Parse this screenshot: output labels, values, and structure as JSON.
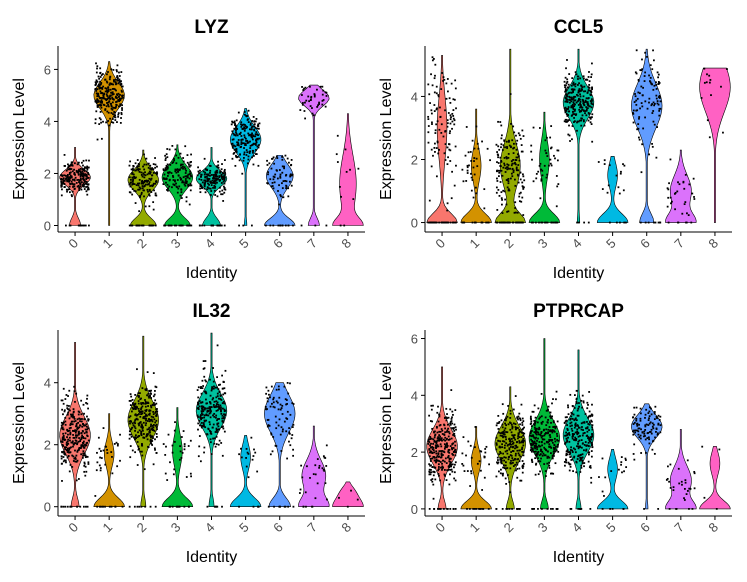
{
  "figure": {
    "identities": [
      "0",
      "1",
      "2",
      "3",
      "4",
      "5",
      "6",
      "7",
      "8"
    ],
    "identity_colors": [
      "#F8766D",
      "#D39200",
      "#93AA00",
      "#00BA38",
      "#00C19F",
      "#00B9E3",
      "#619CFF",
      "#DB72FB",
      "#FF61C3"
    ]
  },
  "chart_data": [
    {
      "type": "violin",
      "title": "LYZ",
      "xlabel": "Identity",
      "ylabel": "Expression Level",
      "ylim": [
        -0.25,
        6.9
      ],
      "yticks": [
        0,
        2,
        4,
        6
      ],
      "categories": [
        "0",
        "1",
        "2",
        "3",
        "4",
        "5",
        "6",
        "7",
        "8"
      ],
      "series": [
        {
          "identity": "0",
          "max": 3.0,
          "zero_frac": 0.2,
          "center": 1.85,
          "spread": 0.3,
          "n_points": 220
        },
        {
          "identity": "1",
          "max": 6.3,
          "zero_frac": 0.0,
          "center": 5.0,
          "spread": 0.5,
          "n_points": 260
        },
        {
          "identity": "2",
          "max": 2.9,
          "zero_frac": 0.4,
          "center": 1.75,
          "spread": 0.4,
          "n_points": 180
        },
        {
          "identity": "3",
          "max": 3.1,
          "zero_frac": 0.4,
          "center": 1.85,
          "spread": 0.45,
          "n_points": 160
        },
        {
          "identity": "4",
          "max": 3.0,
          "zero_frac": 0.3,
          "center": 1.8,
          "spread": 0.3,
          "n_points": 180
        },
        {
          "identity": "5",
          "max": 4.5,
          "zero_frac": 0.05,
          "center": 3.3,
          "spread": 0.5,
          "n_points": 200
        },
        {
          "identity": "6",
          "max": 2.7,
          "zero_frac": 0.5,
          "center": 1.9,
          "spread": 0.45,
          "n_points": 80
        },
        {
          "identity": "7",
          "max": 5.4,
          "zero_frac": 0.2,
          "center": 4.9,
          "spread": 0.3,
          "n_points": 45
        },
        {
          "identity": "8",
          "max": 4.3,
          "zero_frac": 0.6,
          "center": 1.6,
          "spread": 1.1,
          "n_points": 12
        }
      ]
    },
    {
      "type": "violin",
      "title": "CCL5",
      "xlabel": "Identity",
      "ylabel": "Expression Level",
      "ylim": [
        -0.3,
        5.6
      ],
      "yticks": [
        0,
        2,
        4
      ],
      "categories": [
        "0",
        "1",
        "2",
        "3",
        "4",
        "5",
        "6",
        "7",
        "8"
      ],
      "series": [
        {
          "identity": "0",
          "max": 5.3,
          "zero_frac": 0.9,
          "center": 3.0,
          "spread": 1.0,
          "n_points": 150
        },
        {
          "identity": "1",
          "max": 3.6,
          "zero_frac": 0.9,
          "center": 1.8,
          "spread": 0.5,
          "n_points": 50
        },
        {
          "identity": "2",
          "max": 5.5,
          "zero_frac": 0.6,
          "center": 1.8,
          "spread": 0.7,
          "n_points": 200
        },
        {
          "identity": "3",
          "max": 3.5,
          "zero_frac": 0.9,
          "center": 2.0,
          "spread": 0.6,
          "n_points": 60
        },
        {
          "identity": "4",
          "max": 5.5,
          "zero_frac": 0.05,
          "center": 3.8,
          "spread": 0.5,
          "n_points": 260
        },
        {
          "identity": "5",
          "max": 2.1,
          "zero_frac": 0.9,
          "center": 1.5,
          "spread": 0.4,
          "n_points": 20
        },
        {
          "identity": "6",
          "max": 5.5,
          "zero_frac": 0.25,
          "center": 3.7,
          "spread": 0.7,
          "n_points": 110
        },
        {
          "identity": "7",
          "max": 2.3,
          "zero_frac": 0.55,
          "center": 1.0,
          "spread": 0.5,
          "n_points": 35
        },
        {
          "identity": "8",
          "max": 4.9,
          "zero_frac": 0.0,
          "center": 4.3,
          "spread": 0.8,
          "n_points": 14
        }
      ]
    },
    {
      "type": "violin",
      "title": "IL32",
      "xlabel": "Identity",
      "ylabel": "Expression Level",
      "ylim": [
        -0.3,
        5.7
      ],
      "yticks": [
        0,
        2,
        4
      ],
      "categories": [
        "0",
        "1",
        "2",
        "3",
        "4",
        "5",
        "6",
        "7",
        "8"
      ],
      "series": [
        {
          "identity": "0",
          "max": 5.3,
          "zero_frac": 0.15,
          "center": 2.3,
          "spread": 0.6,
          "n_points": 300
        },
        {
          "identity": "1",
          "max": 3.0,
          "zero_frac": 0.9,
          "center": 1.7,
          "spread": 0.4,
          "n_points": 40
        },
        {
          "identity": "2",
          "max": 5.5,
          "zero_frac": 0.1,
          "center": 2.8,
          "spread": 0.6,
          "n_points": 280
        },
        {
          "identity": "3",
          "max": 3.2,
          "zero_frac": 0.9,
          "center": 1.8,
          "spread": 0.5,
          "n_points": 40
        },
        {
          "identity": "4",
          "max": 5.6,
          "zero_frac": 0.1,
          "center": 3.1,
          "spread": 0.55,
          "n_points": 240
        },
        {
          "identity": "5",
          "max": 2.3,
          "zero_frac": 0.9,
          "center": 1.6,
          "spread": 0.4,
          "n_points": 20
        },
        {
          "identity": "6",
          "max": 4.0,
          "zero_frac": 0.35,
          "center": 3.0,
          "spread": 0.6,
          "n_points": 90
        },
        {
          "identity": "7",
          "max": 2.6,
          "zero_frac": 0.5,
          "center": 1.0,
          "spread": 0.5,
          "n_points": 30
        },
        {
          "identity": "8",
          "max": 0.8,
          "zero_frac": 0.9,
          "center": 0.5,
          "spread": 0.2,
          "n_points": 4
        }
      ]
    },
    {
      "type": "violin",
      "title": "PTPRCAP",
      "xlabel": "Identity",
      "ylabel": "Expression Level",
      "ylim": [
        -0.25,
        6.3
      ],
      "yticks": [
        0,
        2,
        4,
        6
      ],
      "categories": [
        "0",
        "1",
        "2",
        "3",
        "4",
        "5",
        "6",
        "7",
        "8"
      ],
      "series": [
        {
          "identity": "0",
          "max": 5.0,
          "zero_frac": 0.15,
          "center": 2.2,
          "spread": 0.6,
          "n_points": 300
        },
        {
          "identity": "1",
          "max": 2.9,
          "zero_frac": 0.9,
          "center": 1.7,
          "spread": 0.4,
          "n_points": 40
        },
        {
          "identity": "2",
          "max": 4.3,
          "zero_frac": 0.15,
          "center": 2.3,
          "spread": 0.6,
          "n_points": 260
        },
        {
          "identity": "3",
          "max": 6.0,
          "zero_frac": 0.15,
          "center": 2.5,
          "spread": 0.6,
          "n_points": 260
        },
        {
          "identity": "4",
          "max": 5.6,
          "zero_frac": 0.1,
          "center": 2.6,
          "spread": 0.6,
          "n_points": 260
        },
        {
          "identity": "5",
          "max": 2.1,
          "zero_frac": 0.9,
          "center": 1.4,
          "spread": 0.4,
          "n_points": 20
        },
        {
          "identity": "6",
          "max": 3.7,
          "zero_frac": 0.05,
          "center": 2.9,
          "spread": 0.4,
          "n_points": 100
        },
        {
          "identity": "7",
          "max": 2.8,
          "zero_frac": 0.55,
          "center": 1.0,
          "spread": 0.5,
          "n_points": 30
        },
        {
          "identity": "8",
          "max": 2.2,
          "zero_frac": 0.9,
          "center": 1.6,
          "spread": 0.4,
          "n_points": 4
        }
      ]
    }
  ]
}
